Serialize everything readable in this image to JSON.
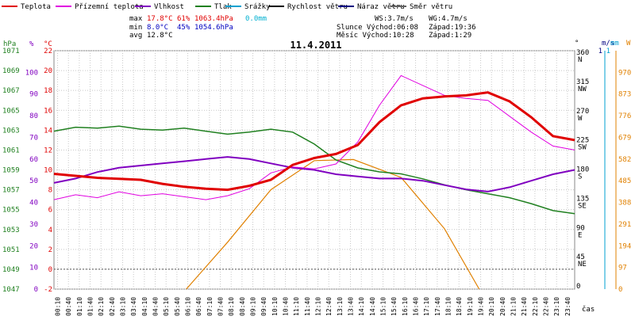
{
  "chart_data": {
    "type": "line",
    "title": "11.4.2011",
    "xlabel": "čas",
    "legend": [
      {
        "name": "Teplota",
        "color": "#e00000"
      },
      {
        "name": "Přízemní teplota",
        "color": "#e000e0"
      },
      {
        "name": "Vlhkost",
        "color": "#8000c0"
      },
      {
        "name": "Tlak",
        "color": "#208020"
      },
      {
        "name": "Srážky",
        "color": "#00a0d0"
      },
      {
        "name": "Rychlost větru",
        "color": "#000000"
      },
      {
        "name": "Náraz větru",
        "color": "#000080"
      },
      {
        "name": "Směr větru",
        "color": "#606060"
      }
    ],
    "stats": {
      "max": {
        "label": "max",
        "temp": "17.8°C",
        "hum": "61%",
        "press": "1063.4hPa",
        "rain": "0.0mm"
      },
      "min": {
        "label": "min",
        "temp": "8.0°C",
        "hum": "45%",
        "press": "1054.6hPa"
      },
      "avg": {
        "label": "avg",
        "temp": "12.8°C"
      }
    },
    "info": {
      "ws": "WS:3.7m/s",
      "wg": "WG:4.7m/s",
      "sun": "Slunce Východ:06:08",
      "sunset": "Západ:19:36",
      "moon": "Měsíc  Východ:10:28",
      "moonset": "Západ:1:29"
    },
    "axes": {
      "hpa_label": "hPa",
      "pct_label": "%",
      "c_label": "°C",
      "deg_label": "°",
      "ms_label": "m/s",
      "mm_label": "mm",
      "w_label": "W",
      "hpa_ticks": [
        "1047",
        "1049",
        "1051",
        "1053",
        "1055",
        "1057",
        "1059",
        "1061",
        "1063",
        "1065",
        "1067",
        "1069",
        "1071"
      ],
      "pct_ticks": [
        "0",
        "10",
        "20",
        "30",
        "40",
        "50",
        "60",
        "70",
        "80",
        "90",
        "100"
      ],
      "c_ticks": [
        "-2",
        "0",
        "2",
        "4",
        "6",
        "8",
        "10",
        "12",
        "14",
        "16",
        "18",
        "20",
        "22"
      ],
      "deg_ticks": [
        {
          "v": "0",
          "d": ""
        },
        {
          "v": "45",
          "d": "NE"
        },
        {
          "v": "90",
          "d": "E"
        },
        {
          "v": "135",
          "d": "SE"
        },
        {
          "v": "180",
          "d": "S"
        },
        {
          "v": "225",
          "d": "SW"
        },
        {
          "v": "270",
          "d": "W"
        },
        {
          "v": "315",
          "d": "NW"
        },
        {
          "v": "360",
          "d": "N"
        }
      ],
      "ms_ticks": [
        "1"
      ],
      "mm_ticks": [
        "1"
      ],
      "w_ticks": [
        "0",
        "97",
        "194",
        "291",
        "388",
        "485",
        "582",
        "679",
        "776",
        "873",
        "970"
      ],
      "x_ticks": [
        "00:10",
        "00:40",
        "01:10",
        "01:40",
        "02:10",
        "02:40",
        "03:10",
        "03:40",
        "04:10",
        "04:40",
        "05:10",
        "05:40",
        "06:10",
        "06:40",
        "07:10",
        "07:40",
        "08:10",
        "08:40",
        "09:10",
        "09:40",
        "10:10",
        "10:40",
        "11:10",
        "11:40",
        "12:10",
        "12:40",
        "13:10",
        "13:40",
        "14:10",
        "14:40",
        "15:10",
        "15:40",
        "16:10",
        "16:40",
        "17:10",
        "17:40",
        "18:10",
        "18:40",
        "19:10",
        "19:40",
        "20:10",
        "20:40",
        "21:10",
        "21:40",
        "22:10",
        "22:40",
        "23:10",
        "23:40"
      ]
    },
    "series": {
      "temp": {
        "x": [
          0,
          1,
          2,
          3,
          4,
          5,
          6,
          7,
          8,
          9,
          10,
          11,
          12,
          13,
          14,
          15,
          16,
          17,
          18,
          19,
          20,
          21,
          22,
          23,
          24
        ],
        "y": [
          9.6,
          9.4,
          9.2,
          9.1,
          9.0,
          8.6,
          8.3,
          8.1,
          8.0,
          8.4,
          9.0,
          10.5,
          11.2,
          11.6,
          12.5,
          14.8,
          16.5,
          17.2,
          17.4,
          17.5,
          17.8,
          16.9,
          15.3,
          13.4,
          13.0
        ]
      },
      "ground_temp": {
        "x": [
          0,
          1,
          2,
          3,
          4,
          5,
          6,
          7,
          8,
          9,
          10,
          11,
          12,
          13,
          14,
          15,
          16,
          17,
          18,
          19,
          20,
          21,
          22,
          23,
          24
        ],
        "y": [
          7,
          7.5,
          7.2,
          7.8,
          7.4,
          7.6,
          7.3,
          7.0,
          7.4,
          8.1,
          9.7,
          10.3,
          10.1,
          10.6,
          12.8,
          16.5,
          19.5,
          18.5,
          17.5,
          17.2,
          17.0,
          15.4,
          13.8,
          12.4,
          12.0
        ]
      },
      "humidity": {
        "x": [
          0,
          1,
          2,
          3,
          4,
          5,
          6,
          7,
          8,
          9,
          10,
          11,
          12,
          13,
          14,
          15,
          16,
          17,
          18,
          19,
          20,
          21,
          22,
          23,
          24
        ],
        "y": [
          49,
          51,
          54,
          56,
          57,
          58,
          59,
          60,
          61,
          60,
          58,
          56,
          55,
          53,
          52,
          51,
          51,
          50,
          48,
          46,
          45,
          47,
          50,
          53,
          55
        ]
      },
      "pressure": {
        "x": [
          0,
          1,
          2,
          3,
          4,
          5,
          6,
          7,
          8,
          9,
          10,
          11,
          12,
          13,
          14,
          15,
          16,
          17,
          18,
          19,
          20,
          21,
          22,
          23,
          24
        ],
        "y": [
          1062.9,
          1063.3,
          1063.2,
          1063.4,
          1063.1,
          1063.0,
          1063.2,
          1062.9,
          1062.6,
          1062.8,
          1063.1,
          1062.8,
          1061.6,
          1060.0,
          1059.2,
          1058.8,
          1058.6,
          1058.1,
          1057.5,
          1057.0,
          1056.6,
          1056.2,
          1055.6,
          1054.9,
          1054.6
        ]
      },
      "solar": {
        "x": [
          6.1,
          8,
          10,
          12,
          13.8,
          16,
          18,
          19.6
        ],
        "y": [
          0,
          210,
          445,
          575,
          580,
          500,
          270,
          0
        ]
      }
    }
  }
}
